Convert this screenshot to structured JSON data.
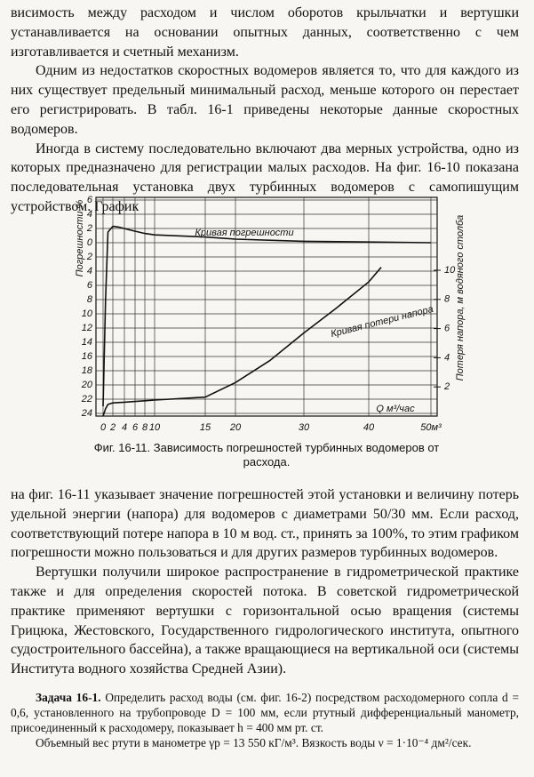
{
  "paragraphs_top": [
    "висимость между расходом и числом оборотов крыльчатки и вертушки устанавливается на основании опытных данных, соответственно с чем изготавливается и счетный механизм.",
    "Одним из недостатков скоростных водомеров является то, что для каждого из них существует предельный минимальный расход, меньше которого он перестает его регистрировать. В табл. 16-1 приведены некоторые данные скоростных водомеров.",
    "Иногда в систему последовательно включают два мерных устройства, одно из которых предназначено для регистрации малых расходов. На фиг. 16-10 показана последовательная установка двух турбинных водомеров с самопишущим устройством. График"
  ],
  "figure": {
    "type": "line",
    "x_label": "Q м³/час",
    "y_label": "Погрешности %",
    "y2_label": "Потеря напора, м водяного столба",
    "xlim": [
      0,
      50
    ],
    "xticks": [
      0,
      2,
      4,
      6,
      8,
      10,
      15,
      20,
      30,
      40,
      {
        "value": 50,
        "label": "50м³"
      }
    ],
    "ylim": [
      -24,
      6
    ],
    "yticks": [
      6,
      4,
      2,
      0,
      {
        "value": -2,
        "label": "2"
      },
      {
        "value": -4,
        "label": "4"
      },
      {
        "value": -6,
        "label": "6"
      },
      {
        "value": -8,
        "label": "8"
      },
      {
        "value": -10,
        "label": "10"
      },
      {
        "value": -12,
        "label": "12"
      },
      {
        "value": -14,
        "label": "14"
      },
      {
        "value": -16,
        "label": "16"
      },
      {
        "value": -18,
        "label": "18"
      },
      {
        "value": -20,
        "label": "20"
      },
      {
        "value": -22,
        "label": "22"
      },
      {
        "value": -24,
        "label": "24"
      }
    ],
    "y2lim": [
      0,
      15
    ],
    "y2ticks": [
      2,
      4,
      6,
      8,
      10
    ],
    "grid": true,
    "series": [
      {
        "name": "Кривая погрешности",
        "color": "#111111",
        "x": [
          0,
          0.5,
          1,
          2,
          3,
          5,
          8,
          10,
          15,
          20,
          30,
          40,
          50
        ],
        "values": [
          -23,
          -8,
          1.5,
          2.3,
          2.2,
          1.8,
          1.3,
          1.1,
          0.8,
          0.5,
          0.2,
          0.1,
          0
        ]
      },
      {
        "name": "Кривая потери напора",
        "color": "#111111",
        "axis": "y2",
        "x": [
          0,
          0.5,
          1,
          2,
          4,
          6,
          8,
          10,
          15,
          20,
          25,
          30,
          35,
          40,
          42
        ],
        "values": [
          0,
          0.5,
          0.8,
          0.9,
          0.95,
          1.0,
          1.05,
          1.1,
          1.3,
          2.3,
          3.8,
          5.7,
          7.4,
          9.2,
          10.2
        ]
      }
    ]
  },
  "caption": "Фиг. 16-11. Зависимость погрешностей турбинных водомеров от расхода.",
  "paragraphs_bottom": [
    "на фиг. 16-11 указывает значение погрешностей этой установки и величину потерь удельной энергии (напора) для водомеров с диаметрами 50/30 мм. Если расход, соответствующий потере напора в 10 м вод. ст., принять за 100%, то этим графиком погрешности можно пользоваться и для других размеров турбинных водомеров.",
    "Вертушки получили широкое распространение в гидрометрической практике также и для определения скоростей потока. В советской гидрометрической практике применяют вертушки с горизонтальной осью вращения (системы Грицюка, Жестовского, Государственного гидрологического института, опытного судостроительного бассейна), а также вращающиеся на вертикальной оси (системы Института водного хозяйства Средней Азии)."
  ],
  "task": {
    "label": "Задача 16-1.",
    "text": "Определить расход воды (см. фиг. 16-2) посредством расходомерного сопла d = 0,6, установленного на трубопроводе D = 100 мм, если ртутный дифференциальный манометр, присоединенный к расходомеру, показывает h = 400 мм рт. ст.",
    "text2": "Объемный вес ртути в манометре γp = 13 550 кГ/м³. Вязкость воды ν = 1·10⁻⁴ дм²/сек."
  }
}
